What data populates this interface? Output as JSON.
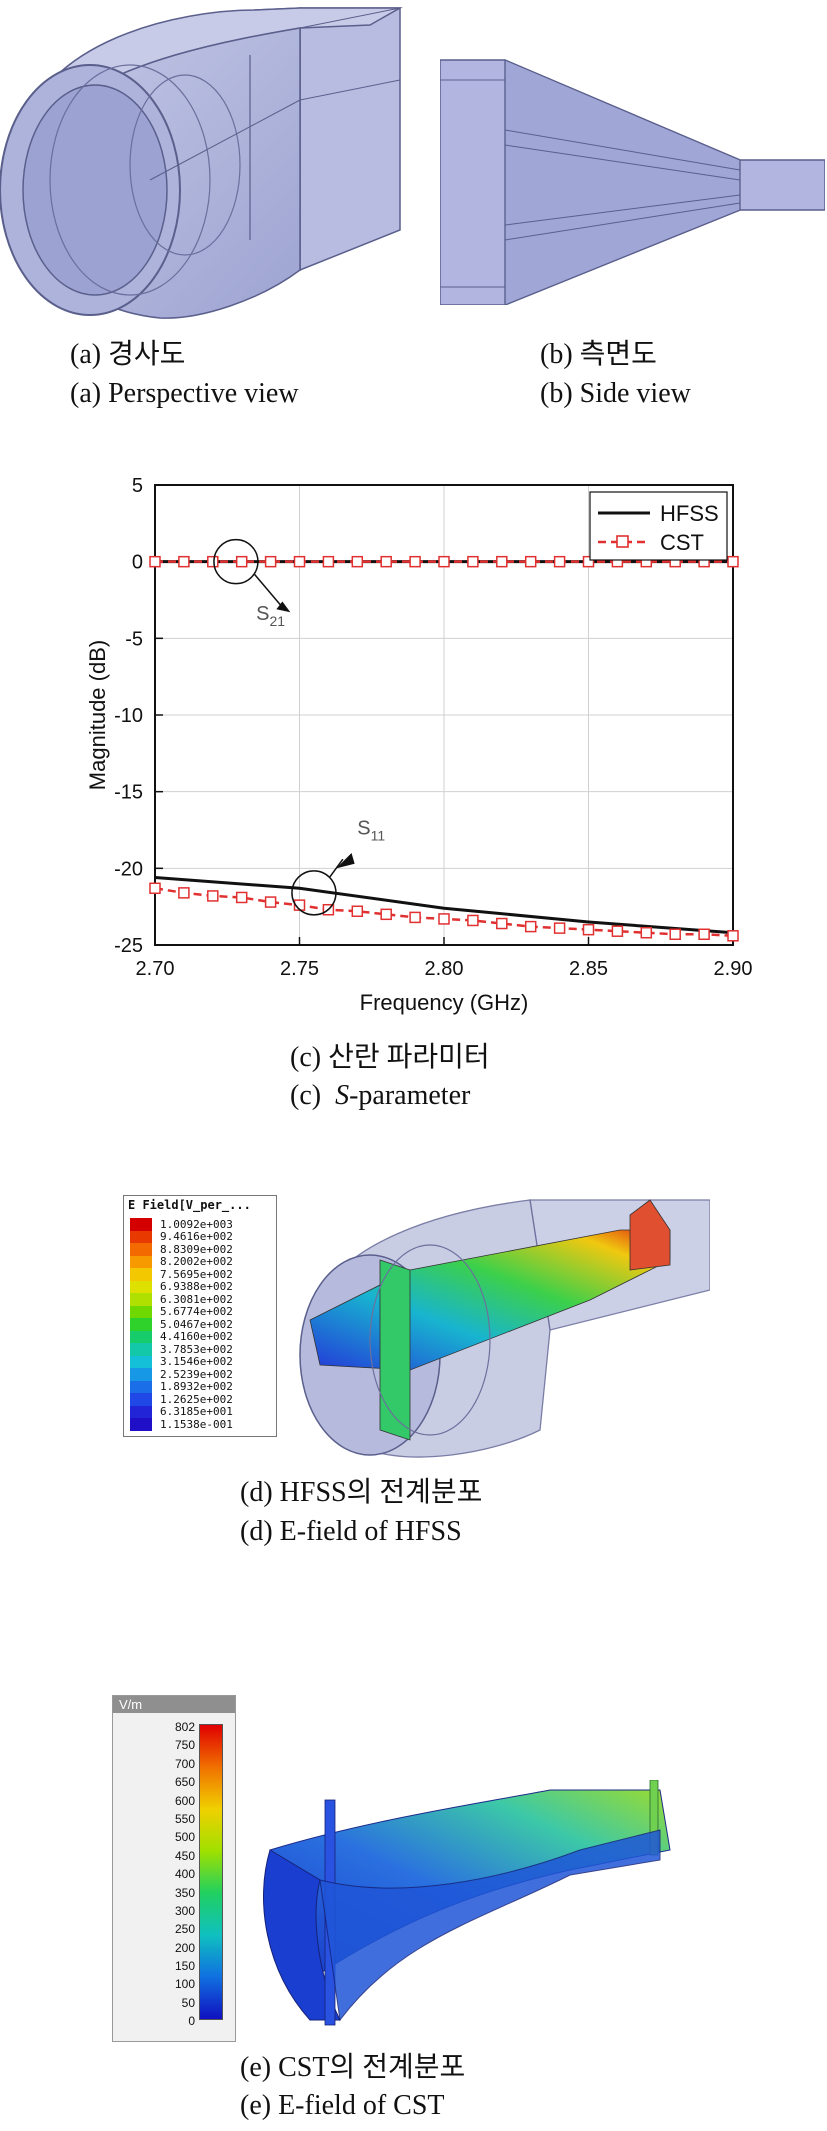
{
  "figures": {
    "a": {
      "caption_kr": "(a)  경사도",
      "caption_en": "(a)  Perspective view"
    },
    "b": {
      "caption_kr": "(b)  측면도",
      "caption_en": "(b)  Side view"
    },
    "c": {
      "caption_kr": "(c)  산란  파라미터",
      "caption_en_prefix": "(c)  ",
      "caption_en_italic": "S",
      "caption_en_suffix": "-parameter"
    },
    "d": {
      "caption_kr": "(d)  HFSS의  전계분포",
      "caption_en": "(d)  E-field of HFSS",
      "legend_title": "E Field[V_per_...",
      "legend_values": [
        "1.0092e+003",
        "9.4616e+002",
        "8.8309e+002",
        "8.2002e+002",
        "7.5695e+002",
        "6.9388e+002",
        "6.3081e+002",
        "5.6774e+002",
        "5.0467e+002",
        "4.4160e+002",
        "3.7853e+002",
        "3.1546e+002",
        "2.5239e+002",
        "1.8932e+002",
        "1.2625e+002",
        "6.3185e+001",
        "1.1538e-001"
      ],
      "legend_colors": [
        "#d40000",
        "#e83a00",
        "#f36a00",
        "#f79a00",
        "#f3c800",
        "#dde000",
        "#b0e000",
        "#6fd800",
        "#2ed22a",
        "#17cc6a",
        "#12c8a8",
        "#13c0d8",
        "#1698e6",
        "#1a6ee8",
        "#1f48e6",
        "#2224d8",
        "#1f10c8"
      ]
    },
    "e": {
      "caption_kr": "(e)  CST의  전계분포",
      "caption_en": "(e)  E-field of CST",
      "legend_title": "V/m",
      "legend_values": [
        "802",
        "750",
        "700",
        "650",
        "600",
        "550",
        "500",
        "450",
        "400",
        "350",
        "300",
        "250",
        "200",
        "150",
        "100",
        "50",
        "0"
      ]
    }
  },
  "chart_data": {
    "type": "line",
    "xlabel": "Frequency (GHz)",
    "ylabel": "Magnitude (dB)",
    "xlim": [
      2.7,
      2.9
    ],
    "ylim": [
      -25,
      5
    ],
    "xticks": [
      "2.70",
      "2.75",
      "2.80",
      "2.85",
      "2.90"
    ],
    "yticks": [
      "5",
      "0",
      "-5",
      "-10",
      "-15",
      "-20",
      "-25"
    ],
    "grid": true,
    "legend_position": "top-right",
    "series": [
      {
        "name": "HFSS",
        "color": "#111111",
        "style": "solid",
        "x": [
          2.7,
          2.75,
          2.8,
          2.85,
          2.9
        ],
        "s21": [
          0,
          0,
          0,
          0,
          0
        ],
        "s11": [
          -20.6,
          -21.3,
          -22.6,
          -23.5,
          -24.2
        ]
      },
      {
        "name": "CST",
        "color": "#e03030",
        "style": "dashed-square",
        "x": [
          2.7,
          2.71,
          2.72,
          2.73,
          2.74,
          2.75,
          2.76,
          2.77,
          2.78,
          2.79,
          2.8,
          2.81,
          2.82,
          2.83,
          2.84,
          2.85,
          2.86,
          2.87,
          2.88,
          2.89,
          2.9
        ],
        "s21": [
          0,
          0,
          0,
          0,
          0,
          0,
          0,
          0,
          0,
          0,
          0,
          0,
          0,
          0,
          0,
          0,
          0,
          0,
          0,
          0,
          0
        ],
        "s11": [
          -21.3,
          -21.6,
          -21.8,
          -21.9,
          -22.2,
          -22.4,
          -22.7,
          -22.8,
          -23.0,
          -23.2,
          -23.3,
          -23.4,
          -23.6,
          -23.8,
          -23.9,
          -24.0,
          -24.1,
          -24.2,
          -24.3,
          -24.3,
          -24.4
        ]
      }
    ],
    "annotations": [
      {
        "base": "S",
        "sub": "21",
        "x": 2.735,
        "y": -3.8
      },
      {
        "base": "S",
        "sub": "11",
        "x": 2.77,
        "y": -17.8
      }
    ]
  }
}
